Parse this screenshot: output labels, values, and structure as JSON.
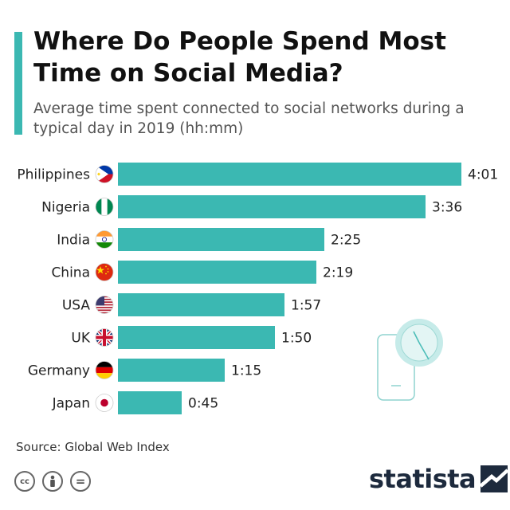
{
  "header": {
    "title": "Where Do People Spend Most Time on Social Media?",
    "subtitle": "Average time spent connected to social networks during a typical day in 2019 (hh:mm)"
  },
  "chart_data": {
    "type": "bar",
    "orientation": "horizontal",
    "title": "Where Do People Spend Most Time on Social Media?",
    "subtitle": "Average time spent connected to social networks during a typical day in 2019 (hh:mm)",
    "categories": [
      "Philippines",
      "Nigeria",
      "India",
      "China",
      "USA",
      "UK",
      "Germany",
      "Japan"
    ],
    "values_minutes": [
      241,
      216,
      145,
      139,
      117,
      110,
      75,
      45
    ],
    "value_labels": [
      "4:01",
      "3:36",
      "2:25",
      "2:19",
      "1:57",
      "1:50",
      "1:15",
      "0:45"
    ],
    "flags": [
      "philippines-flag",
      "nigeria-flag",
      "india-flag",
      "china-flag",
      "usa-flag",
      "uk-flag",
      "germany-flag",
      "japan-flag"
    ],
    "xlim": [
      0,
      241
    ],
    "grid": false,
    "legend": "none",
    "bar_color": "#3bb8b2"
  },
  "footer": {
    "source": "Source: Global Web Index",
    "license_icons": [
      "cc-icon",
      "by-icon",
      "nd-icon"
    ],
    "license_labels": [
      "cc",
      "",
      "="
    ],
    "logo_text": "statista"
  },
  "colors": {
    "accent": "#3bb8b2",
    "brand": "#1d2a3d"
  }
}
